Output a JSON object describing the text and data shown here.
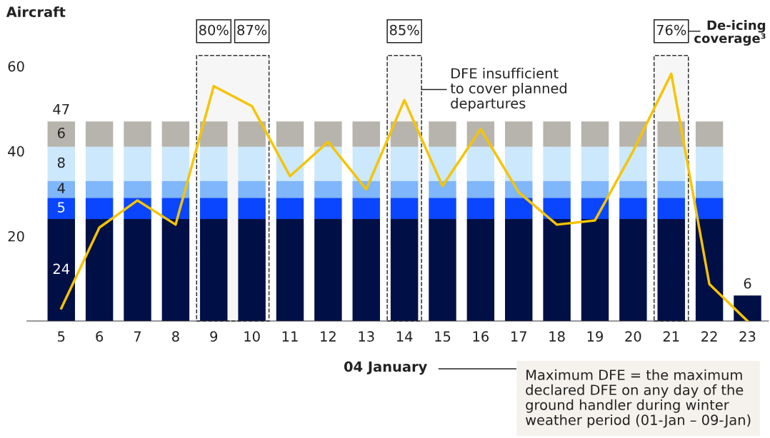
{
  "chart_data": {
    "type": "bar",
    "stacked": true,
    "ylabel": "Aircraft",
    "categories": [
      "5",
      "6",
      "7",
      "8",
      "9",
      "10",
      "11",
      "12",
      "13",
      "14",
      "15",
      "16",
      "17",
      "18",
      "19",
      "20",
      "21",
      "22",
      "23"
    ],
    "series": [
      {
        "color": "#000f45",
        "values": [
          24,
          24,
          24,
          24,
          24,
          24,
          24,
          24,
          24,
          24,
          24,
          24,
          24,
          24,
          24,
          24,
          24,
          24,
          6
        ],
        "value_labels": [
          "24",
          null,
          null,
          null,
          null,
          null,
          null,
          null,
          null,
          null,
          null,
          null,
          null,
          null,
          null,
          null,
          null,
          null,
          null
        ]
      },
      {
        "color": "#0a46ff",
        "values": [
          5,
          5,
          5,
          5,
          5,
          5,
          5,
          5,
          5,
          5,
          5,
          5,
          5,
          5,
          5,
          5,
          5,
          5,
          null
        ],
        "value_labels": [
          "5",
          null,
          null,
          null,
          null,
          null,
          null,
          null,
          null,
          null,
          null,
          null,
          null,
          null,
          null,
          null,
          null,
          null,
          null
        ]
      },
      {
        "color": "#80b6fa",
        "values": [
          4,
          4,
          4,
          4,
          4,
          4,
          4,
          4,
          4,
          4,
          4,
          4,
          4,
          4,
          4,
          4,
          4,
          4,
          null
        ],
        "value_labels": [
          "4",
          null,
          null,
          null,
          null,
          null,
          null,
          null,
          null,
          null,
          null,
          null,
          null,
          null,
          null,
          null,
          null,
          null,
          null
        ]
      },
      {
        "color": "#cce8fc",
        "values": [
          8,
          8,
          8,
          8,
          8,
          8,
          8,
          8,
          8,
          8,
          8,
          8,
          8,
          8,
          8,
          8,
          8,
          8,
          null
        ],
        "value_labels": [
          "8",
          null,
          null,
          null,
          null,
          null,
          null,
          null,
          null,
          null,
          null,
          null,
          null,
          null,
          null,
          null,
          null,
          null,
          null
        ]
      },
      {
        "color": "#b7b4ae",
        "values": [
          6,
          6,
          6,
          6,
          6,
          6,
          6,
          6,
          6,
          6,
          6,
          6,
          6,
          6,
          6,
          6,
          6,
          6,
          null
        ],
        "value_labels": [
          "6",
          null,
          null,
          null,
          null,
          null,
          null,
          null,
          null,
          null,
          null,
          null,
          null,
          null,
          null,
          null,
          null,
          null,
          null
        ]
      },
      {
        "type": "line",
        "color": "#f5c400",
        "values": [
          3,
          22,
          28.4,
          22.7,
          55.3,
          50.6,
          34.1,
          42.2,
          31,
          52,
          31.8,
          45.2,
          30.3,
          22.7,
          23.7,
          40,
          58.2,
          8.7,
          0
        ]
      }
    ],
    "totals": [
      "47",
      null,
      null,
      null,
      null,
      null,
      null,
      null,
      null,
      null,
      null,
      null,
      null,
      null,
      null,
      null,
      null,
      null,
      "6"
    ],
    "ylim": [
      0,
      60
    ],
    "yticks": [
      20,
      40,
      60
    ],
    "grid": false,
    "marker": "none",
    "bands": [
      {
        "axis": "x",
        "from": "9",
        "to": "10",
        "label": null,
        "color": "#f6f6f6"
      },
      {
        "axis": "x",
        "from": "14",
        "to": "14",
        "label": "DFE insufficient\nto cover planned\ndepartures",
        "color": "#f6f6f6"
      },
      {
        "axis": "x",
        "from": "21",
        "to": "21",
        "label": null,
        "color": "#f6f6f6"
      }
    ],
    "annotations": [
      "De-icing\ncoverage³",
      "04 January",
      "Maximum DFE = the maximum\ndeclared DFE on any day of the\nground handler during winter\nweather period (01-Jan – 09-Jan)",
      "80%",
      "87%",
      "85%",
      "76%"
    ]
  }
}
